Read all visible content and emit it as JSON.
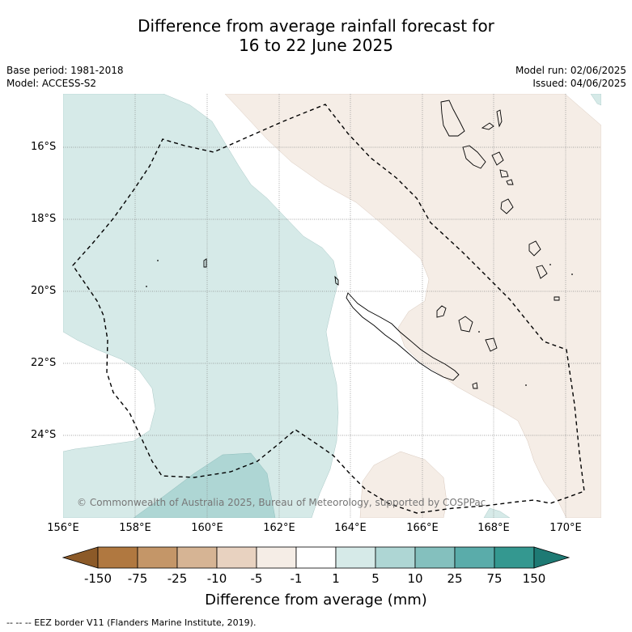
{
  "title_line1": "Difference from average rainfall forecast for",
  "title_line2": "16 to 22 June 2025",
  "meta_left": {
    "base_period": "Base period: 1981-2018",
    "model": "Model: ACCESS-S2"
  },
  "meta_right": {
    "model_run": "Model run: 02/06/2025",
    "issued": "Issued: 04/06/2025"
  },
  "lat_labels": [
    "16°S",
    "18°S",
    "20°S",
    "22°S",
    "24°S"
  ],
  "lon_labels": [
    "156°E",
    "158°E",
    "160°E",
    "162°E",
    "164°E",
    "166°E",
    "168°E",
    "170°E"
  ],
  "copyright": "© Commonwealth of Australia 2025, Bureau of Meteorology, supported by COSPPac",
  "colorbar": {
    "title": "Difference from average (mm)",
    "labels": [
      "-150",
      "-75",
      "-25",
      "-10",
      "-5",
      "-1",
      "1",
      "5",
      "10",
      "25",
      "75",
      "150"
    ],
    "colors": [
      "#8c5a28",
      "#b07840",
      "#c49668",
      "#d6b494",
      "#e8d2c0",
      "#f5ede6",
      "#ffffff",
      "#d6eae8",
      "#aed6d4",
      "#84c0be",
      "#5aacaa",
      "#349890",
      "#1e7a74"
    ]
  },
  "colors": {
    "wet_light": "#d6eae8",
    "wet_mid": "#aed6d4",
    "dry_light": "#f5ede6"
  },
  "footnote": "--  --  -- EEZ border V11 (Flanders Marine Institute, 2019)."
}
